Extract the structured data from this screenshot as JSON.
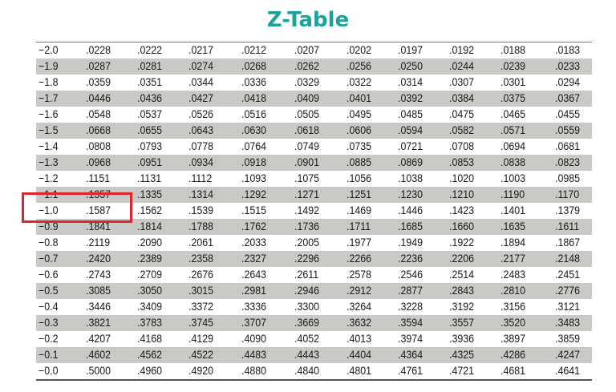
{
  "title": "Z-Table",
  "table": {
    "rows": [
      {
        "label": "−2.0",
        "values": [
          ".0228",
          ".0222",
          ".0217",
          ".0212",
          ".0207",
          ".0202",
          ".0197",
          ".0192",
          ".0188",
          ".0183"
        ]
      },
      {
        "label": "−1.9",
        "values": [
          ".0287",
          ".0281",
          ".0274",
          ".0268",
          ".0262",
          ".0256",
          ".0250",
          ".0244",
          ".0239",
          ".0233"
        ]
      },
      {
        "label": "−1.8",
        "values": [
          ".0359",
          ".0351",
          ".0344",
          ".0336",
          ".0329",
          ".0322",
          ".0314",
          ".0307",
          ".0301",
          ".0294"
        ]
      },
      {
        "label": "−1.7",
        "values": [
          ".0446",
          ".0436",
          ".0427",
          ".0418",
          ".0409",
          ".0401",
          ".0392",
          ".0384",
          ".0375",
          ".0367"
        ]
      },
      {
        "label": "−1.6",
        "values": [
          ".0548",
          ".0537",
          ".0526",
          ".0516",
          ".0505",
          ".0495",
          ".0485",
          ".0475",
          ".0465",
          ".0455"
        ]
      },
      {
        "label": "−1.5",
        "values": [
          ".0668",
          ".0655",
          ".0643",
          ".0630",
          ".0618",
          ".0606",
          ".0594",
          ".0582",
          ".0571",
          ".0559"
        ]
      },
      {
        "label": "−1.4",
        "values": [
          ".0808",
          ".0793",
          ".0778",
          ".0764",
          ".0749",
          ".0735",
          ".0721",
          ".0708",
          ".0694",
          ".0681"
        ]
      },
      {
        "label": "−1.3",
        "values": [
          ".0968",
          ".0951",
          ".0934",
          ".0918",
          ".0901",
          ".0885",
          ".0869",
          ".0853",
          ".0838",
          ".0823"
        ]
      },
      {
        "label": "−1.2",
        "values": [
          ".1151",
          ".1131",
          ".1112",
          ".1093",
          ".1075",
          ".1056",
          ".1038",
          ".1020",
          ".1003",
          ".0985"
        ]
      },
      {
        "label": "−1.1",
        "values": [
          ".1357",
          ".1335",
          ".1314",
          ".1292",
          ".1271",
          ".1251",
          ".1230",
          ".1210",
          ".1190",
          ".1170"
        ]
      },
      {
        "label": "−1.0",
        "values": [
          ".1587",
          ".1562",
          ".1539",
          ".1515",
          ".1492",
          ".1469",
          ".1446",
          ".1423",
          ".1401",
          ".1379"
        ]
      },
      {
        "label": "−0.9",
        "values": [
          ".1841",
          ".1814",
          ".1788",
          ".1762",
          ".1736",
          ".1711",
          ".1685",
          ".1660",
          ".1635",
          ".1611"
        ]
      },
      {
        "label": "−0.8",
        "values": [
          ".2119",
          ".2090",
          ".2061",
          ".2033",
          ".2005",
          ".1977",
          ".1949",
          ".1922",
          ".1894",
          ".1867"
        ]
      },
      {
        "label": "−0.7",
        "values": [
          ".2420",
          ".2389",
          ".2358",
          ".2327",
          ".2296",
          ".2266",
          ".2236",
          ".2206",
          ".2177",
          ".2148"
        ]
      },
      {
        "label": "−0.6",
        "values": [
          ".2743",
          ".2709",
          ".2676",
          ".2643",
          ".2611",
          ".2578",
          ".2546",
          ".2514",
          ".2483",
          ".2451"
        ]
      },
      {
        "label": "−0.5",
        "values": [
          ".3085",
          ".3050",
          ".3015",
          ".2981",
          ".2946",
          ".2912",
          ".2877",
          ".2843",
          ".2810",
          ".2776"
        ]
      },
      {
        "label": "−0.4",
        "values": [
          ".3446",
          ".3409",
          ".3372",
          ".3336",
          ".3300",
          ".3264",
          ".3228",
          ".3192",
          ".3156",
          ".3121"
        ]
      },
      {
        "label": "−0.3",
        "values": [
          ".3821",
          ".3783",
          ".3745",
          ".3707",
          ".3669",
          ".3632",
          ".3594",
          ".3557",
          ".3520",
          ".3483"
        ]
      },
      {
        "label": "−0.2",
        "values": [
          ".4207",
          ".4168",
          ".4129",
          ".4090",
          ".4052",
          ".4013",
          ".3974",
          ".3936",
          ".3897",
          ".3859"
        ]
      },
      {
        "label": "−0.1",
        "values": [
          ".4602",
          ".4562",
          ".4522",
          ".4483",
          ".4443",
          ".4404",
          ".4364",
          ".4325",
          ".4286",
          ".4247"
        ]
      },
      {
        "label": "−0.0",
        "values": [
          ".5000",
          ".4960",
          ".4920",
          ".4880",
          ".4840",
          ".4801",
          ".4761",
          ".4721",
          ".4681",
          ".4641"
        ]
      }
    ]
  }
}
